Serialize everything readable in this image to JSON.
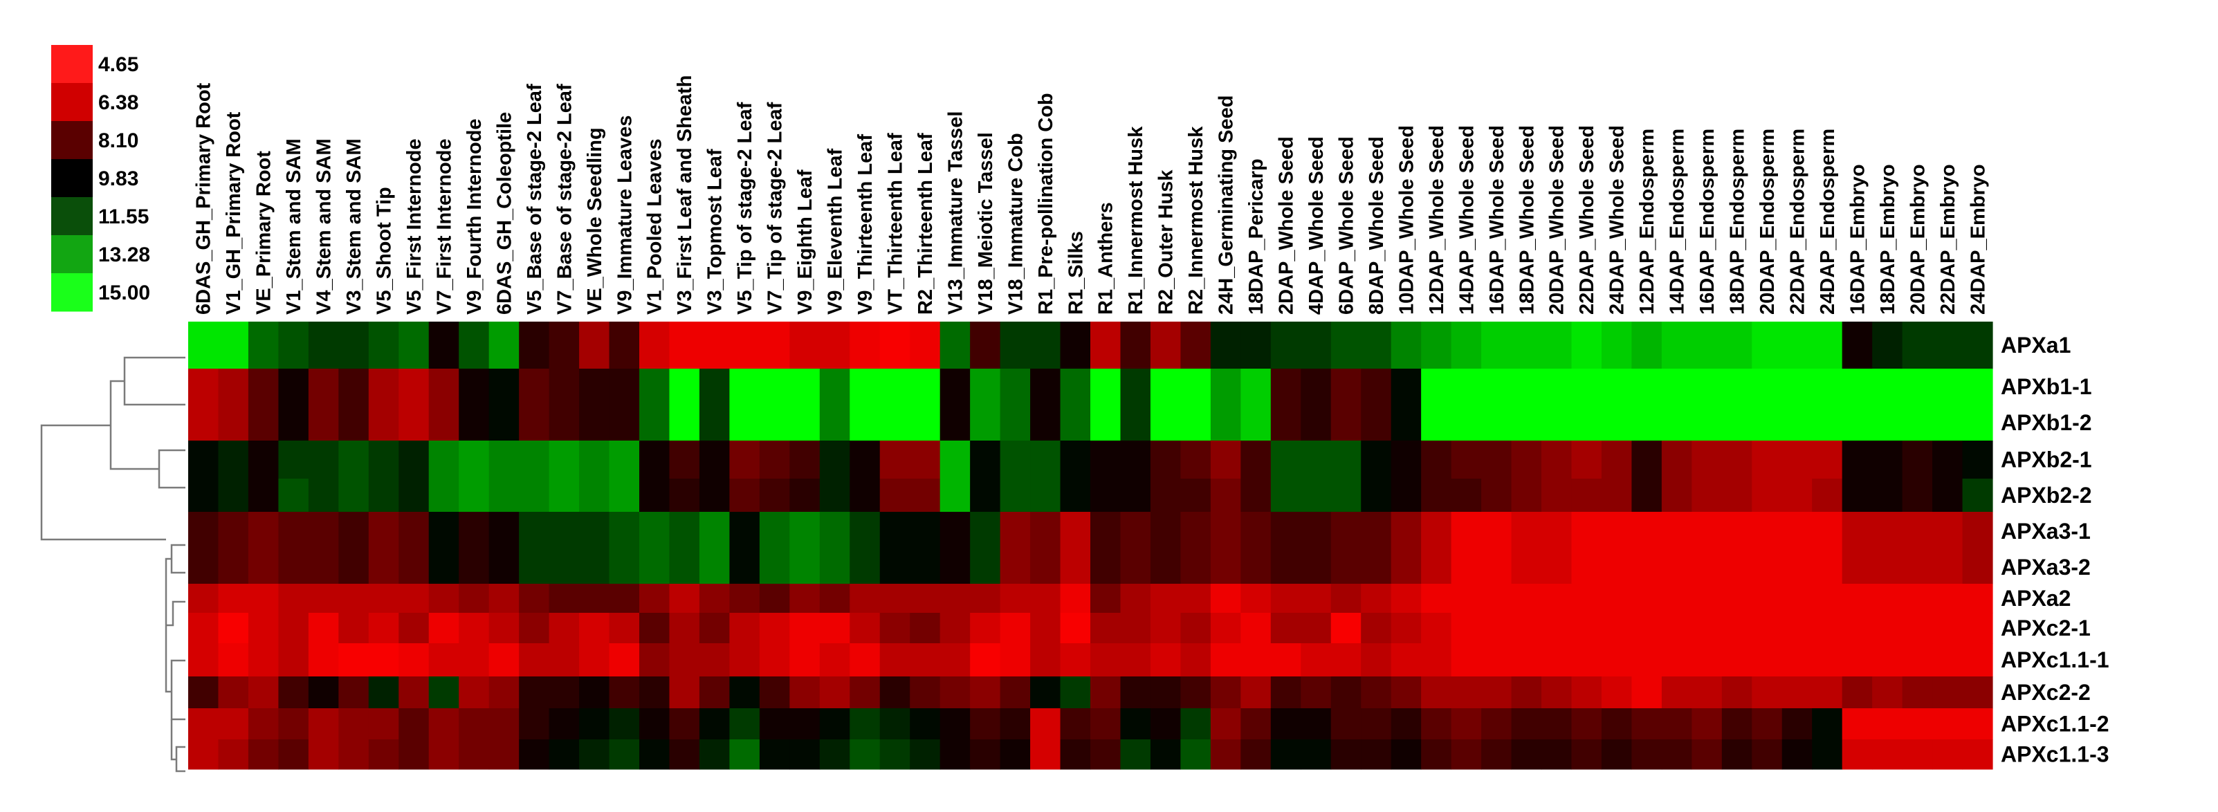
{
  "chart_data": {
    "type": "heatmap",
    "title": "",
    "xlabel": "",
    "ylabel": "",
    "color_scale": {
      "low_color": "#ff0000",
      "mid_color": "#000000",
      "high_color": "#00ff00",
      "min": 4.65,
      "max": 15.0,
      "ticks": [
        "4.65",
        "6.38",
        "8.10",
        "9.83",
        "11.55",
        "13.28",
        "15.00"
      ],
      "tick_colors": [
        "#ff1a1a",
        "#d00000",
        "#5a0000",
        "#000000",
        "#0a4f0a",
        "#12a612",
        "#1aff1a"
      ]
    },
    "columns": [
      "6DAS_GH_Primary Root",
      "V1_GH_Primary Root",
      "VE_Primary Root",
      "V1_Stem and SAM",
      "V4_Stem and SAM",
      "V3_Stem and SAM",
      "V5_Shoot Tip",
      "V5_First Internode",
      "V7_First Internode",
      "V9_Fourth Internode",
      "6DAS_GH_Coleoptile",
      "V5_Base of stage-2 Leaf",
      "V7_Base of stage-2 Leaf",
      "VE_Whole Seedling",
      "V9_Immature Leaves",
      "V1_Pooled Leaves",
      "V3_First Leaf and Sheath",
      "V3_Topmost Leaf",
      "V5_Tip of stage-2 Leaf",
      "V7_Tip of stage-2 Leaf",
      "V9_Eighth Leaf",
      "V9_Eleventh Leaf",
      "V9_Thirteenth Leaf",
      "VT_Thirteenth Leaf",
      "R2_Thirteenth Leaf",
      "V13_Immature Tassel",
      "V18_Meiotic Tassel",
      "V18_Immature Cob",
      "R1_Pre-pollination Cob",
      "R1_Silks",
      "R1_Anthers",
      "R1_Innermost Husk",
      "R2_Outer Husk",
      "R2_Innermost Husk",
      "24H_Germinating Seed",
      "18DAP_Pericarp",
      "2DAP_Whole Seed",
      "4DAP_Whole Seed",
      "6DAP_Whole Seed",
      "8DAP_Whole Seed",
      "10DAP_Whole Seed",
      "12DAP_Whole Seed",
      "14DAP_Whole Seed",
      "16DAP_Whole Seed",
      "18DAP_Whole Seed",
      "20DAP_Whole Seed",
      "22DAP_Whole Seed",
      "24DAP_Whole Seed",
      "12DAP_Endosperm",
      "14DAP_Endosperm",
      "16DAP_Endosperm",
      "18DAP_Endosperm",
      "20DAP_Endosperm",
      "22DAP_Endosperm",
      "24DAP_Endosperm",
      "16DAP_Embryo",
      "18DAP_Embryo",
      "20DAP_Embryo",
      "22DAP_Embryo",
      "24DAP_Embryo"
    ],
    "rows": [
      "APXa1",
      "APXb1-1",
      "APXb1-2",
      "APXb2-1",
      "APXb2-2",
      "APXa3-1",
      "APXa3-2",
      "APXa2",
      "APXc2-1",
      "APXc1.1-1",
      "APXc2-2",
      "APXc1.1-2",
      "APXc1.1-3"
    ],
    "values": [
      [
        14.5,
        14.5,
        12.0,
        11.5,
        11.0,
        11.0,
        11.5,
        12.0,
        9.5,
        11.5,
        13.0,
        9.0,
        8.5,
        6.5,
        8.5,
        5.5,
        5.0,
        5.0,
        5.0,
        5.0,
        5.5,
        5.5,
        5.0,
        4.8,
        5.0,
        12.0,
        8.5,
        11.0,
        11.0,
        9.5,
        6.0,
        8.5,
        6.5,
        8.0,
        10.5,
        10.5,
        11.0,
        11.0,
        11.5,
        11.5,
        12.5,
        13.0,
        13.5,
        14.0,
        14.0,
        14.0,
        14.5,
        14.0,
        13.5,
        14.0,
        14.0,
        14.0,
        14.5,
        14.5,
        14.5,
        9.5,
        10.5,
        11.0,
        11.0,
        11.0
      ],
      [
        6.0,
        6.5,
        8.0,
        9.5,
        7.5,
        8.5,
        6.5,
        6.0,
        7.0,
        9.5,
        10.0,
        8.0,
        8.5,
        9.0,
        9.0,
        12.0,
        15.0,
        11.0,
        15.0,
        15.0,
        15.0,
        12.5,
        15.0,
        15.0,
        15.0,
        9.5,
        13.0,
        12.0,
        9.5,
        12.0,
        15.0,
        11.0,
        15.0,
        15.0,
        13.0,
        14.0,
        8.5,
        9.0,
        8.0,
        8.5,
        10.0,
        15.0,
        15.0,
        15.0,
        15.0,
        15.0,
        15.0,
        15.0,
        15.0,
        15.0,
        15.0,
        15.0,
        15.0,
        15.0,
        15.0,
        15.0,
        15.0,
        15.0,
        15.0,
        15.0
      ],
      [
        6.0,
        6.5,
        8.0,
        9.5,
        7.5,
        8.5,
        6.5,
        6.0,
        7.0,
        9.5,
        10.0,
        8.0,
        8.5,
        9.0,
        9.0,
        12.0,
        15.0,
        11.0,
        15.0,
        15.0,
        15.0,
        12.5,
        15.0,
        15.0,
        15.0,
        9.5,
        13.0,
        12.0,
        9.5,
        12.0,
        15.0,
        11.0,
        15.0,
        15.0,
        13.0,
        14.0,
        8.5,
        9.0,
        8.0,
        8.5,
        10.0,
        15.0,
        15.0,
        15.0,
        15.0,
        15.0,
        15.0,
        15.0,
        15.0,
        15.0,
        15.0,
        15.0,
        15.0,
        15.0,
        15.0,
        15.0,
        15.0,
        15.0,
        15.0,
        15.0
      ],
      [
        10.0,
        10.5,
        9.5,
        11.0,
        11.0,
        11.5,
        11.0,
        10.5,
        12.5,
        13.0,
        12.5,
        12.5,
        13.0,
        12.5,
        13.0,
        9.5,
        8.5,
        9.5,
        7.5,
        8.0,
        8.5,
        10.5,
        9.5,
        7.0,
        7.0,
        13.5,
        10.0,
        11.5,
        11.5,
        10.0,
        9.5,
        9.5,
        8.5,
        8.0,
        7.0,
        8.5,
        11.5,
        11.5,
        11.5,
        10.0,
        9.5,
        8.5,
        8.0,
        8.0,
        7.5,
        7.0,
        6.5,
        7.0,
        9.0,
        7.0,
        6.5,
        6.5,
        6.0,
        6.0,
        6.0,
        9.5,
        9.5,
        9.0,
        9.5,
        10.0
      ],
      [
        10.0,
        10.5,
        9.5,
        11.5,
        11.0,
        11.5,
        11.0,
        10.5,
        12.5,
        13.0,
        12.5,
        12.5,
        13.0,
        12.5,
        13.0,
        9.5,
        9.0,
        9.5,
        8.0,
        8.5,
        9.0,
        10.5,
        9.5,
        7.5,
        7.5,
        13.5,
        10.0,
        11.5,
        11.5,
        10.0,
        9.5,
        9.5,
        8.5,
        8.5,
        7.5,
        8.5,
        11.5,
        11.5,
        11.5,
        10.0,
        9.5,
        8.5,
        8.5,
        8.0,
        7.5,
        7.0,
        7.0,
        7.0,
        9.0,
        7.0,
        6.5,
        6.5,
        6.0,
        6.0,
        6.5,
        9.5,
        9.5,
        9.0,
        9.5,
        11.0
      ],
      [
        8.5,
        8.0,
        7.5,
        8.0,
        8.0,
        8.5,
        7.5,
        8.0,
        10.0,
        9.0,
        9.5,
        11.0,
        11.0,
        11.0,
        11.5,
        12.0,
        11.5,
        12.5,
        10.0,
        12.0,
        12.5,
        12.0,
        11.0,
        10.0,
        10.0,
        9.5,
        11.0,
        7.0,
        7.5,
        6.0,
        8.5,
        8.0,
        8.5,
        8.0,
        7.5,
        8.0,
        8.5,
        8.5,
        8.0,
        8.0,
        7.0,
        6.0,
        5.0,
        5.0,
        5.5,
        5.5,
        5.0,
        5.0,
        5.0,
        5.0,
        5.0,
        5.0,
        5.0,
        5.0,
        5.0,
        6.0,
        6.0,
        6.0,
        6.0,
        6.5
      ],
      [
        8.5,
        8.0,
        7.5,
        8.0,
        8.0,
        8.5,
        7.5,
        8.0,
        10.0,
        9.0,
        9.5,
        11.0,
        11.0,
        11.0,
        11.5,
        12.0,
        11.5,
        12.5,
        10.0,
        12.0,
        12.5,
        12.0,
        11.0,
        10.0,
        10.0,
        9.5,
        11.0,
        7.0,
        7.5,
        6.0,
        8.5,
        8.0,
        8.5,
        8.0,
        7.5,
        8.0,
        8.5,
        8.5,
        8.0,
        8.0,
        7.0,
        6.0,
        5.0,
        5.0,
        5.5,
        5.5,
        5.0,
        5.0,
        5.0,
        5.0,
        5.0,
        5.0,
        5.0,
        5.0,
        5.0,
        6.0,
        6.0,
        6.0,
        6.0,
        6.5
      ],
      [
        6.0,
        5.5,
        5.5,
        6.0,
        6.0,
        6.0,
        6.0,
        6.0,
        6.5,
        7.0,
        6.5,
        7.5,
        8.0,
        8.0,
        8.0,
        7.0,
        6.0,
        7.0,
        7.5,
        8.0,
        7.0,
        7.5,
        6.5,
        6.5,
        6.5,
        6.5,
        6.5,
        6.0,
        6.0,
        5.0,
        7.5,
        6.5,
        6.0,
        6.0,
        5.0,
        5.5,
        6.0,
        6.0,
        6.5,
        6.0,
        5.5,
        5.0,
        5.0,
        5.0,
        5.0,
        5.0,
        5.0,
        5.0,
        5.0,
        5.0,
        5.0,
        5.0,
        5.0,
        5.0,
        5.0,
        5.0,
        5.0,
        5.0,
        5.0,
        5.0
      ],
      [
        5.5,
        4.8,
        5.5,
        6.0,
        5.0,
        6.0,
        5.5,
        6.5,
        5.0,
        5.5,
        6.0,
        7.0,
        6.0,
        5.5,
        6.0,
        8.0,
        6.5,
        7.5,
        6.0,
        5.5,
        5.0,
        5.0,
        6.0,
        7.0,
        7.5,
        6.5,
        5.5,
        5.0,
        6.0,
        4.8,
        6.5,
        6.5,
        6.0,
        6.5,
        5.5,
        5.0,
        6.5,
        6.5,
        4.8,
        6.5,
        6.0,
        5.5,
        5.0,
        5.0,
        5.0,
        5.0,
        5.0,
        5.0,
        5.0,
        5.0,
        5.0,
        5.0,
        5.0,
        5.0,
        5.0,
        5.0,
        5.0,
        5.0,
        5.0,
        5.0
      ],
      [
        5.5,
        5.0,
        5.5,
        6.0,
        5.0,
        4.8,
        4.8,
        5.0,
        5.5,
        5.5,
        5.0,
        6.0,
        6.0,
        5.5,
        5.0,
        7.0,
        6.5,
        6.5,
        6.0,
        5.5,
        5.0,
        5.5,
        5.0,
        6.0,
        6.0,
        6.0,
        4.8,
        5.0,
        6.0,
        5.5,
        6.0,
        6.0,
        5.5,
        6.0,
        5.0,
        5.0,
        5.0,
        5.5,
        5.5,
        6.0,
        5.5,
        5.5,
        5.0,
        5.0,
        5.0,
        5.0,
        5.0,
        5.0,
        5.0,
        5.0,
        5.0,
        5.0,
        5.0,
        5.0,
        5.0,
        5.0,
        5.0,
        5.0,
        5.0,
        5.0
      ],
      [
        8.5,
        7.0,
        6.5,
        8.5,
        9.5,
        8.0,
        10.5,
        7.0,
        11.0,
        6.5,
        7.0,
        9.0,
        9.0,
        9.5,
        8.5,
        9.0,
        6.5,
        8.0,
        10.0,
        8.5,
        7.0,
        6.5,
        7.5,
        9.0,
        8.0,
        7.5,
        7.0,
        8.0,
        10.0,
        11.0,
        7.5,
        9.0,
        9.0,
        8.5,
        7.5,
        6.5,
        8.5,
        8.0,
        8.5,
        8.0,
        7.5,
        6.5,
        6.5,
        6.5,
        7.0,
        6.5,
        6.0,
        5.5,
        5.0,
        6.0,
        6.0,
        6.5,
        6.0,
        6.0,
        6.0,
        7.0,
        6.5,
        7.0,
        7.0,
        7.0
      ],
      [
        6.0,
        6.0,
        7.0,
        7.5,
        6.5,
        7.0,
        7.0,
        8.0,
        7.0,
        7.5,
        7.5,
        9.0,
        9.5,
        10.0,
        10.5,
        9.5,
        8.5,
        10.0,
        11.0,
        9.5,
        9.5,
        10.0,
        11.0,
        10.5,
        10.0,
        9.5,
        8.5,
        9.0,
        5.5,
        8.5,
        8.0,
        10.0,
        9.5,
        11.0,
        7.0,
        8.0,
        9.5,
        9.5,
        8.5,
        8.5,
        9.0,
        8.0,
        7.5,
        8.0,
        8.5,
        8.5,
        8.0,
        8.5,
        8.0,
        8.0,
        7.5,
        8.5,
        8.0,
        9.0,
        10.0,
        5.0,
        5.0,
        5.0,
        5.0,
        5.0
      ],
      [
        6.0,
        6.5,
        7.5,
        8.0,
        6.5,
        7.0,
        7.5,
        8.0,
        7.0,
        7.5,
        7.5,
        9.5,
        10.0,
        10.5,
        11.0,
        10.0,
        9.0,
        10.5,
        12.0,
        10.0,
        10.0,
        10.5,
        11.5,
        11.0,
        10.5,
        9.5,
        9.0,
        9.5,
        5.5,
        9.0,
        8.5,
        11.0,
        10.0,
        11.5,
        7.5,
        8.5,
        10.0,
        10.0,
        9.0,
        9.0,
        9.5,
        8.5,
        8.0,
        8.5,
        9.0,
        9.0,
        8.5,
        9.0,
        8.5,
        8.5,
        8.0,
        9.0,
        8.5,
        9.5,
        10.0,
        5.5,
        5.5,
        5.5,
        5.5,
        5.5
      ]
    ],
    "legend": "top-left"
  }
}
